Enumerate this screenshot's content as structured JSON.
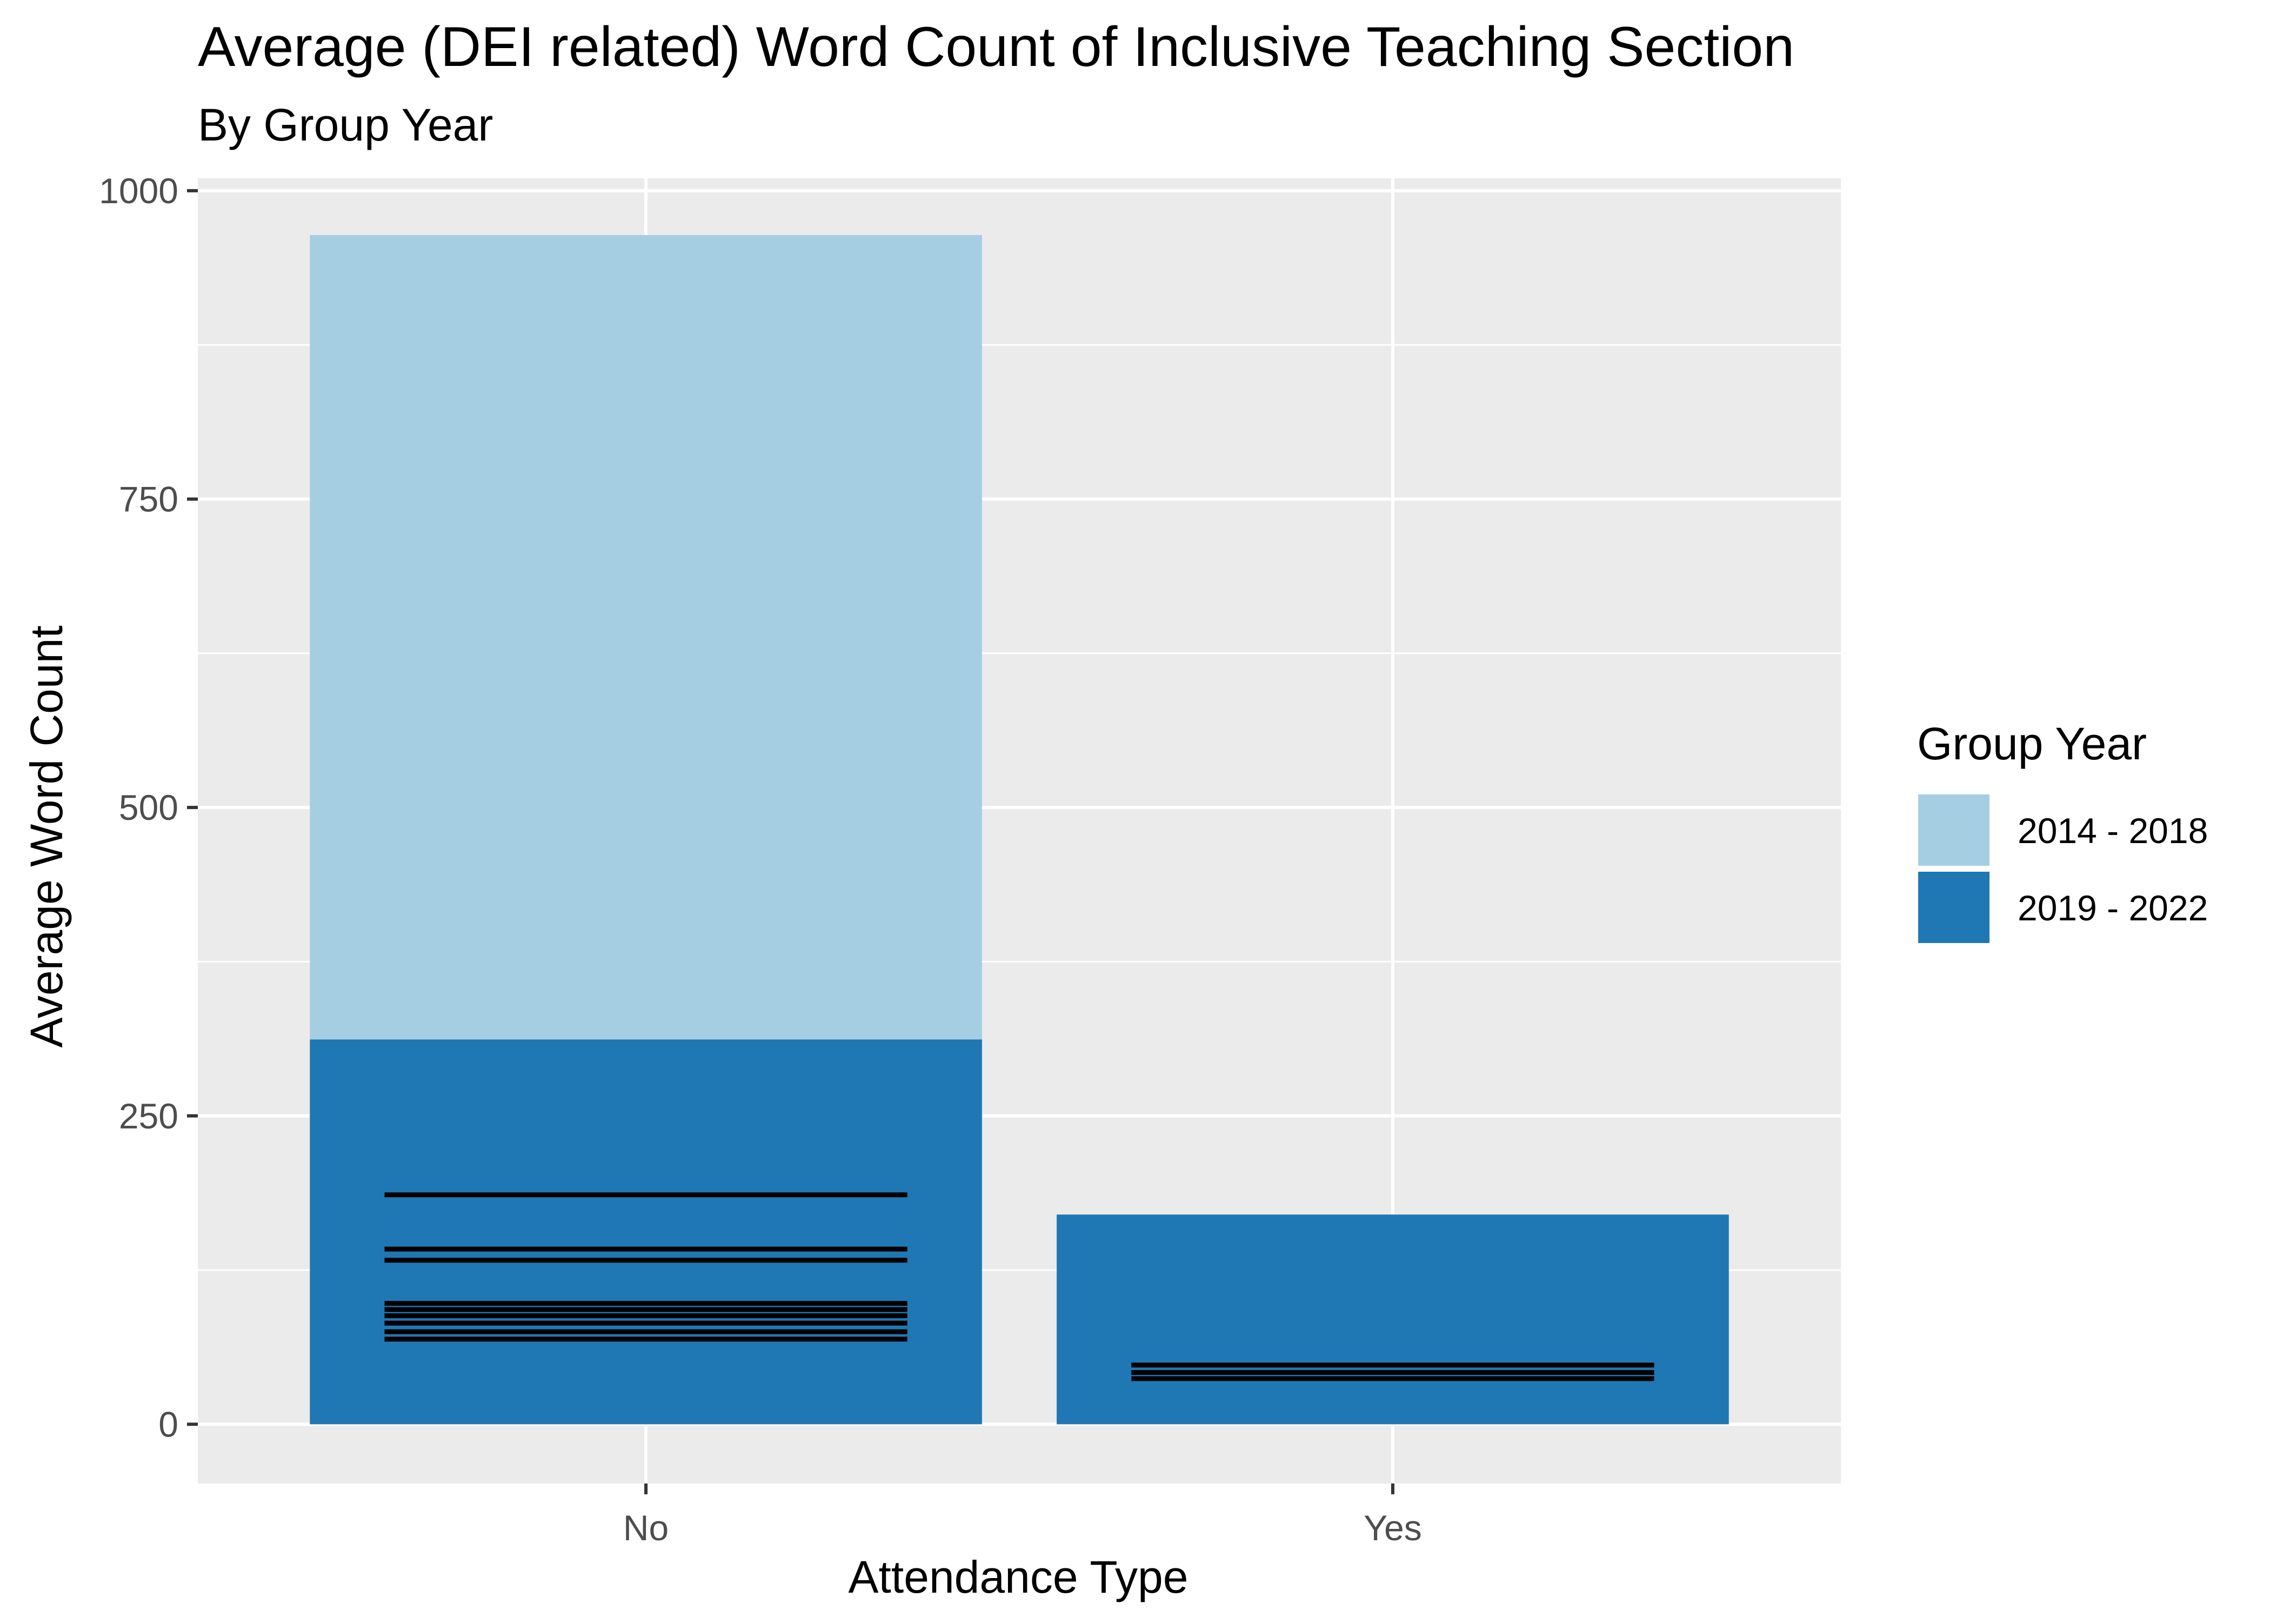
{
  "chart_data": {
    "type": "bar",
    "stacked": true,
    "title": "Average (DEI related) Word Count of Inclusive Teaching Section",
    "subtitle": "By Group Year",
    "xlabel": "Attendance Type",
    "ylabel": "Average Word Count",
    "categories": [
      "No",
      "Yes"
    ],
    "ylim": [
      -48,
      1010
    ],
    "yticks": [
      0,
      250,
      500,
      750,
      1000
    ],
    "ytick_labels": [
      "0",
      "250",
      "500",
      "750",
      "1000"
    ],
    "grid": true,
    "legend_title": "Group Year",
    "legend_position": "right",
    "series": [
      {
        "name": "2019 - 2022",
        "color": "#1F78B4",
        "values": [
          312,
          170
        ]
      },
      {
        "name": "2014 - 2018",
        "color": "#A6CEE3",
        "values": [
          652,
          0
        ]
      }
    ],
    "error_lines": [
      {
        "category": "No",
        "values": [
          186,
          142,
          133,
          98,
          93,
          88,
          82,
          75,
          69
        ]
      },
      {
        "category": "Yes",
        "values": [
          48,
          42,
          37
        ]
      }
    ]
  }
}
